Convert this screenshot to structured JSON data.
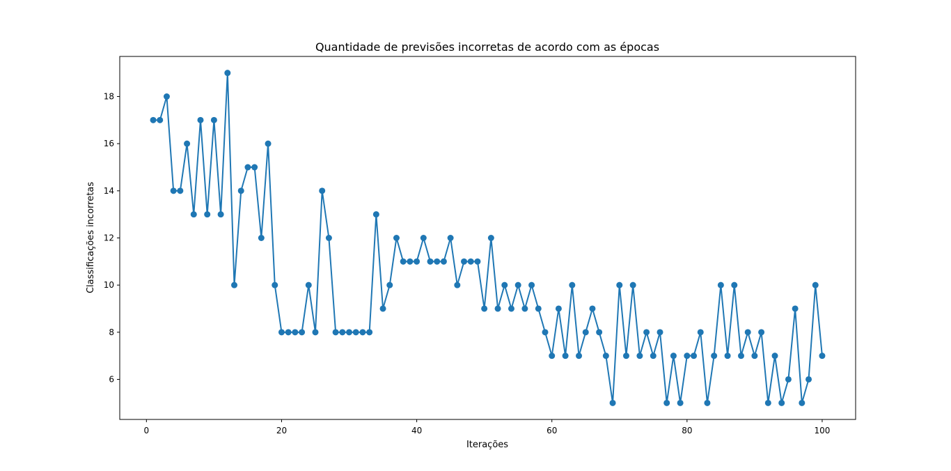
{
  "chart_data": {
    "type": "line",
    "title": "Quantidade de previsões incorretas de acordo com as épocas",
    "xlabel": "Iterações",
    "ylabel": "Classificações incorretas",
    "xlim": [
      -3.95,
      104.95
    ],
    "ylim": [
      4.3,
      19.7
    ],
    "xticks": [
      0,
      20,
      40,
      60,
      80,
      100
    ],
    "yticks": [
      6,
      8,
      10,
      12,
      14,
      16,
      18
    ],
    "grid": false,
    "line_color": "#1f77b4",
    "marker": "circle",
    "series": [
      {
        "x": [
          1,
          2,
          3,
          4,
          5,
          6,
          7,
          8,
          9,
          10,
          11,
          12,
          13,
          14,
          15,
          16,
          17,
          18,
          19,
          20,
          21,
          22,
          23,
          24,
          25,
          26,
          27,
          28,
          29,
          30,
          31,
          32,
          33,
          34,
          35,
          36,
          37,
          38,
          39,
          40,
          41,
          42,
          43,
          44,
          45,
          46,
          47,
          48,
          49,
          50,
          51,
          52,
          53,
          54,
          55,
          56,
          57,
          58,
          59,
          60,
          61,
          62,
          63,
          64,
          65,
          66,
          67,
          68,
          69,
          70,
          71,
          72,
          73,
          74,
          75,
          76,
          77,
          78,
          79,
          80,
          81,
          82,
          83,
          84,
          85,
          86,
          87,
          88,
          89,
          90,
          91,
          92,
          93,
          94,
          95,
          96,
          97,
          98,
          99,
          100
        ],
        "values": [
          17,
          17,
          18,
          14,
          14,
          16,
          13,
          17,
          13,
          17,
          13,
          19,
          10,
          14,
          15,
          15,
          12,
          16,
          10,
          8,
          8,
          8,
          8,
          10,
          8,
          14,
          12,
          8,
          8,
          8,
          8,
          8,
          8,
          13,
          9,
          10,
          12,
          11,
          11,
          11,
          12,
          11,
          11,
          11,
          12,
          10,
          11,
          11,
          11,
          9,
          12,
          9,
          10,
          9,
          10,
          9,
          10,
          9,
          8,
          7,
          9,
          7,
          10,
          7,
          8,
          9,
          8,
          7,
          5,
          10,
          7,
          10,
          7,
          8,
          7,
          8,
          5,
          7,
          5,
          7,
          7,
          8,
          5,
          7,
          10,
          7,
          10,
          7,
          8,
          7,
          8,
          5,
          7,
          5,
          6,
          9,
          5,
          6,
          10,
          7
        ]
      }
    ]
  }
}
